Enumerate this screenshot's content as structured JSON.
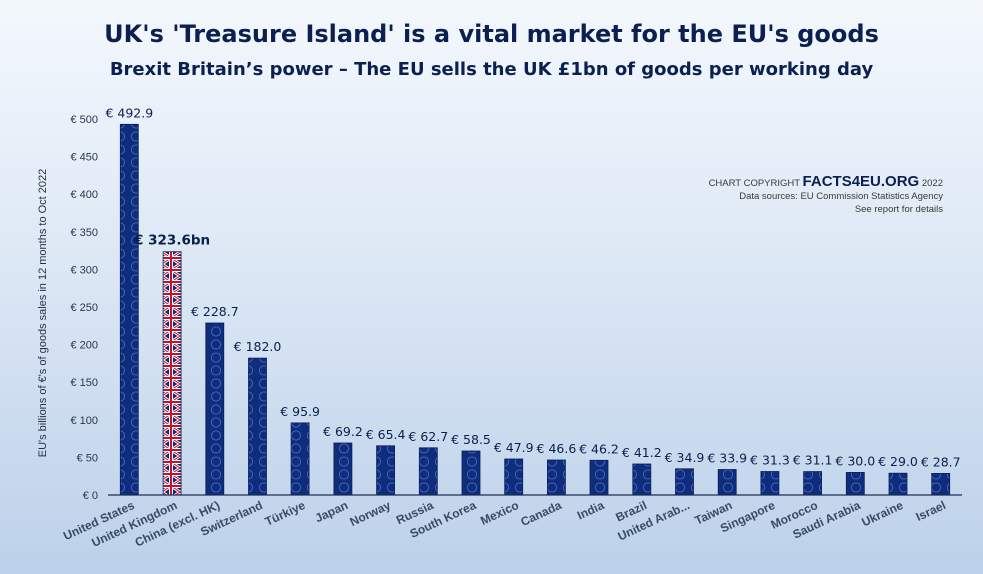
{
  "chart_data": {
    "type": "bar",
    "title": "UK's 'Treasure Island' is a vital market for the EU's goods",
    "subtitle": "Brexit Britain’s power – The EU sells the UK £1bn of goods per working day",
    "ylabel": "EU's billions of €'s of goods sales in 12 months to Oct 2022",
    "xlabel": "",
    "ylim": [
      0,
      500
    ],
    "yticks": [
      0,
      50,
      100,
      150,
      200,
      250,
      300,
      350,
      400,
      450,
      500
    ],
    "ytick_labels": [
      "€ 0",
      "€ 50",
      "€ 100",
      "€ 150",
      "€ 200",
      "€ 250",
      "€ 300",
      "€ 350",
      "€ 400",
      "€ 450",
      "€ 500"
    ],
    "categories": [
      "United States",
      "United Kingdom",
      "China (excl. HK)",
      "Switzerland",
      "Türkiye",
      "Japan",
      "Norway",
      "Russia",
      "South Korea",
      "Mexico",
      "Canada",
      "India",
      "Brazil",
      "United Arab...",
      "Taiwan",
      "Singapore",
      "Morocco",
      "Saudi Arabia",
      "Ukraine",
      "Israel"
    ],
    "values": [
      492.9,
      323.6,
      228.7,
      182.0,
      95.9,
      69.2,
      65.4,
      62.7,
      58.5,
      47.9,
      46.6,
      46.2,
      41.2,
      34.9,
      33.9,
      31.3,
      31.1,
      30.0,
      29.0,
      28.7
    ],
    "data_labels": [
      "€ 492.9",
      "€ 323.6bn",
      "€ 228.7",
      "€ 182.0",
      "€ 95.9",
      "€ 69.2",
      "€ 65.4",
      "€ 62.7",
      "€ 58.5",
      "€ 47.9",
      "€ 46.6",
      "€ 46.2",
      "€ 41.2",
      "€ 34.9",
      "€ 33.9",
      "€ 31.3",
      "€ 31.1",
      "€ 30.0",
      "€ 29.0",
      "€ 28.7"
    ],
    "highlight_category": "United Kingdom",
    "grid": false,
    "legend": "none"
  },
  "colors": {
    "bar": "#0f2d7a",
    "bar_pattern": "#3d64c4",
    "union_blue": "#0a2a78",
    "union_red": "#c8102e",
    "union_white": "#ffffff",
    "title": "#0b2050"
  },
  "copyright": {
    "prefix": "CHART COPYRIGHT",
    "brand": "FACTS4EU.ORG",
    "year": "2022",
    "source_line": "Data sources: EU Commission Statistics Agency",
    "details_line": "See report for details"
  }
}
